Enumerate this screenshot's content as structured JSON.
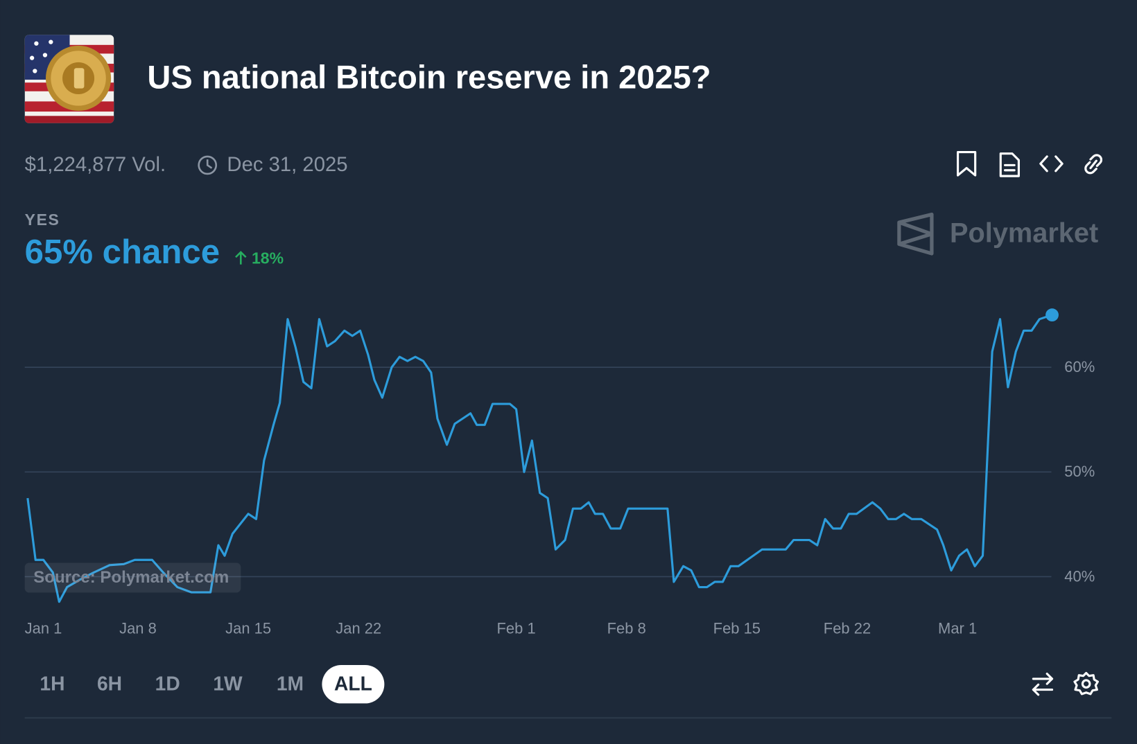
{
  "header": {
    "title": "US national Bitcoin reserve in 2025?",
    "volume": "$1,224,877 Vol.",
    "end_date": "Dec 31, 2025"
  },
  "outcome": {
    "label": "YES",
    "chance": "65% chance",
    "change": "18%"
  },
  "brand": "Polymarket",
  "source": "Source: Polymarket.com",
  "range_buttons": [
    "1H",
    "6H",
    "1D",
    "1W",
    "1M",
    "ALL"
  ],
  "selected_range": "ALL",
  "chart_data": {
    "type": "line",
    "x": [
      0,
      0.5,
      1.0,
      1.6,
      2.0,
      2.5,
      3.3,
      4.2,
      5.2,
      6.1,
      6.8,
      7.9,
      8.6,
      9.5,
      10.4,
      11.6,
      12.1,
      12.5,
      13.0,
      14.0,
      14.5,
      15.0,
      15.6,
      16.0,
      16.5,
      17.0,
      17.5,
      18.0,
      18.5,
      19.0,
      19.5,
      20.1,
      20.6,
      21.1,
      21.6,
      22.0,
      22.5,
      23.1,
      23.6,
      24.1,
      24.6,
      25.1,
      25.6,
      26.0,
      26.6,
      27.1,
      27.6,
      28.1,
      28.5,
      29.0,
      29.5,
      30.6,
      31.0,
      31.5,
      32.0,
      32.5,
      33.0,
      33.5,
      34.1,
      34.6,
      35.1,
      35.6,
      36.0,
      36.5,
      37.0,
      37.6,
      38.1,
      40.6,
      41.0,
      41.6,
      42.1,
      42.6,
      43.1,
      43.6,
      44.1,
      44.6,
      45.1,
      46.6,
      48.1,
      48.6,
      49.6,
      50.1,
      50.6,
      51.1,
      51.6,
      52.1,
      52.6,
      53.6,
      54.1,
      54.6,
      55.1,
      55.6,
      56.1,
      56.7,
      57.7,
      58.1,
      58.6,
      59.1,
      59.6,
      60.1,
      60.6,
      61.2,
      61.7,
      62.2,
      62.7,
      63.2,
      63.7,
      64.2,
      65.0
    ],
    "series": [
      {
        "color": "#2d9cdb",
        "values": [
          47.5,
          41.6,
          41.6,
          40.4,
          37.6,
          39.0,
          39.7,
          40.4,
          41.1,
          41.2,
          41.6,
          41.6,
          40.4,
          39.0,
          38.5,
          38.5,
          43.0,
          42.0,
          44.1,
          46.0,
          45.5,
          51.1,
          54.5,
          56.6,
          64.6,
          61.9,
          58.6,
          58.0,
          64.6,
          62.0,
          62.5,
          63.5,
          63.0,
          63.5,
          61.2,
          58.8,
          57.1,
          60.0,
          61.0,
          60.6,
          61.0,
          60.6,
          59.5,
          55.1,
          52.6,
          54.6,
          55.1,
          55.6,
          54.5,
          54.5,
          56.5,
          56.5,
          56.0,
          50.0,
          53.0,
          48.0,
          47.5,
          42.6,
          43.5,
          46.5,
          46.5,
          47.1,
          46.0,
          46.0,
          44.6,
          44.6,
          46.5,
          46.5,
          39.5,
          41.0,
          40.6,
          39.0,
          39.0,
          39.5,
          39.5,
          41.0,
          41.0,
          42.6,
          42.6,
          43.5,
          43.5,
          43.0,
          45.5,
          44.6,
          44.6,
          46.0,
          46.0,
          47.1,
          46.5,
          45.5,
          45.5,
          46.0,
          45.5,
          45.5,
          44.5,
          43.0,
          40.6,
          42.0,
          42.6,
          41.0,
          42.0,
          61.5,
          64.6,
          58.1,
          61.5,
          63.5,
          63.5,
          64.6,
          65.0
        ]
      }
    ],
    "xlim": [
      0,
      65
    ],
    "xticks": [
      {
        "value": 0,
        "label": "Jan 1"
      },
      {
        "value": 7,
        "label": "Jan 8"
      },
      {
        "value": 14,
        "label": "Jan 15"
      },
      {
        "value": 21,
        "label": "Jan 22"
      },
      {
        "value": 31,
        "label": "Feb 1"
      },
      {
        "value": 38,
        "label": "Feb 8"
      },
      {
        "value": 45,
        "label": "Feb 15"
      },
      {
        "value": 52,
        "label": "Feb 22"
      },
      {
        "value": 59,
        "label": "Mar 1"
      }
    ],
    "ylim": [
      37,
      67
    ],
    "yticks": [
      {
        "value": 40,
        "label": "40%"
      },
      {
        "value": 50,
        "label": "50%"
      },
      {
        "value": 60,
        "label": "60%"
      }
    ],
    "grid": true
  }
}
